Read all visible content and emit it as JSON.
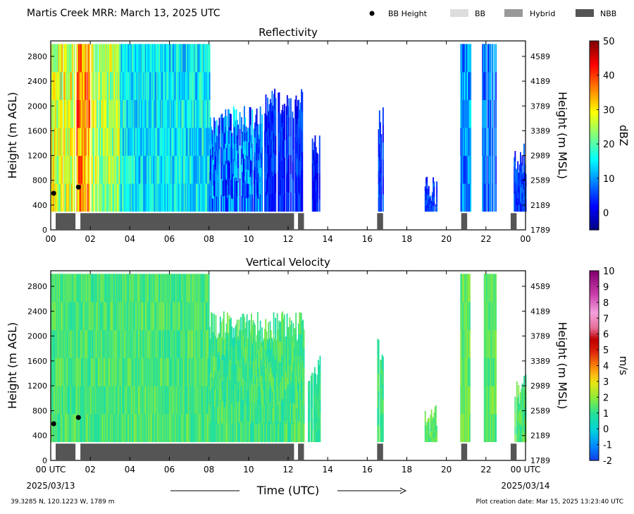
{
  "header": {
    "title": "Martis Creek MRR:  March 13, 2025 UTC",
    "legend": [
      {
        "label": "BB Height",
        "kind": "dot",
        "color": "#000000"
      },
      {
        "label": "BB",
        "kind": "box",
        "color": "#dddddd"
      },
      {
        "label": "Hybrid",
        "kind": "box",
        "color": "#999999"
      },
      {
        "label": "NBB",
        "kind": "box",
        "color": "#555555"
      }
    ]
  },
  "footer": {
    "location": "39.3285 N, 120.1223 W, 1789 m",
    "creation": "Plot creation date: Mar 15, 2025 13:23:40 UTC",
    "xlabel": "Time (UTC)",
    "date_start": "2025/03/13",
    "date_end": "2025/03/14"
  },
  "chart_data": [
    {
      "type": "heatmap",
      "title": "Reflectivity",
      "ylabel": "Height (m AGL)",
      "ylabel_right": "Height (m MSL)",
      "xlim": [
        0,
        24
      ],
      "ylim": [
        0,
        3050
      ],
      "x_ticks": [
        "00",
        "02",
        "04",
        "06",
        "08",
        "10",
        "12",
        "14",
        "16",
        "18",
        "20",
        "22",
        "00"
      ],
      "y_ticks": [
        0,
        400,
        800,
        1200,
        1600,
        2000,
        2400,
        2800
      ],
      "y_ticks_right": [
        "1789",
        "2189",
        "2589",
        "2989",
        "3389",
        "3789",
        "4189",
        "4589"
      ],
      "colorbar": {
        "label": "dBZ",
        "min": -5,
        "max": 50,
        "ticks": [
          0,
          10,
          20,
          30,
          40,
          50
        ],
        "colormap": "jet"
      },
      "bb_height": [
        {
          "x": 0.15,
          "y": 590
        },
        {
          "x": 1.4,
          "y": 690
        }
      ],
      "classification": [
        {
          "start": 0.25,
          "end": 1.25,
          "class": "NBB"
        },
        {
          "start": 1.5,
          "end": 12.3,
          "class": "NBB"
        },
        {
          "start": 12.5,
          "end": 12.8,
          "class": "NBB"
        },
        {
          "start": 16.5,
          "end": 16.8,
          "class": "NBB"
        },
        {
          "start": 20.75,
          "end": 21.05,
          "class": "NBB"
        },
        {
          "start": 23.25,
          "end": 23.55,
          "class": "NBB"
        }
      ],
      "echo_segments": [
        {
          "start": 0.0,
          "end": 1.2,
          "top": 3000,
          "center": 27,
          "spread": 8
        },
        {
          "start": 1.3,
          "end": 2.0,
          "top": 3000,
          "center": 35,
          "spread": 8
        },
        {
          "start": 2.0,
          "end": 3.5,
          "top": 3000,
          "center": 25,
          "spread": 7
        },
        {
          "start": 3.5,
          "end": 8.0,
          "top": 3000,
          "center": 15,
          "spread": 6
        },
        {
          "start": 8.0,
          "end": 10.8,
          "top": 2000,
          "center": 8,
          "spread": 8
        },
        {
          "start": 10.8,
          "end": 12.8,
          "top": 2300,
          "center": 4,
          "spread": 4
        },
        {
          "start": 13.2,
          "end": 13.6,
          "top": 1700,
          "center": 3,
          "spread": 3
        },
        {
          "start": 16.5,
          "end": 16.8,
          "top": 2000,
          "center": 5,
          "spread": 4
        },
        {
          "start": 18.9,
          "end": 19.5,
          "top": 900,
          "center": 5,
          "spread": 3
        },
        {
          "start": 20.7,
          "end": 21.2,
          "top": 3000,
          "center": 9,
          "spread": 6
        },
        {
          "start": 21.8,
          "end": 22.5,
          "top": 3000,
          "center": 8,
          "spread": 5
        },
        {
          "start": 23.4,
          "end": 24.0,
          "top": 1400,
          "center": 5,
          "spread": 4
        }
      ]
    },
    {
      "type": "heatmap",
      "title": "Vertical Velocity",
      "ylabel": "Height (m AGL)",
      "ylabel_right": "Height (m MSL)",
      "xlim": [
        0,
        24
      ],
      "ylim": [
        0,
        3050
      ],
      "x_ticks": [
        "00 UTC",
        "02",
        "04",
        "06",
        "08",
        "10",
        "12",
        "14",
        "16",
        "18",
        "20",
        "22",
        "00 UTC"
      ],
      "y_ticks": [
        0,
        400,
        800,
        1200,
        1600,
        2000,
        2400,
        2800
      ],
      "y_ticks_right": [
        "1789",
        "2189",
        "2589",
        "2989",
        "3389",
        "3789",
        "4189",
        "4589"
      ],
      "colorbar": {
        "label": "m/s",
        "min": -2,
        "max": 10,
        "ticks": [
          -2,
          -1,
          0,
          1,
          2,
          3,
          4,
          5,
          6,
          7,
          8,
          9,
          10
        ],
        "colormap": "velocity"
      },
      "bb_height": [
        {
          "x": 0.15,
          "y": 590
        },
        {
          "x": 1.4,
          "y": 690
        }
      ],
      "classification": [
        {
          "start": 0.25,
          "end": 1.25,
          "class": "NBB"
        },
        {
          "start": 1.5,
          "end": 12.3,
          "class": "NBB"
        },
        {
          "start": 12.5,
          "end": 12.8,
          "class": "NBB"
        },
        {
          "start": 16.5,
          "end": 16.8,
          "class": "NBB"
        },
        {
          "start": 20.75,
          "end": 21.05,
          "class": "NBB"
        },
        {
          "start": 23.25,
          "end": 23.55,
          "class": "NBB"
        }
      ],
      "echo_segments": [
        {
          "start": 0.0,
          "end": 8.0,
          "top": 3000,
          "center": 1.3,
          "spread": 0.6
        },
        {
          "start": 8.0,
          "end": 12.8,
          "top": 2400,
          "center": 1.2,
          "spread": 0.7
        },
        {
          "start": 13.0,
          "end": 13.6,
          "top": 1700,
          "center": 1.0,
          "spread": 0.4
        },
        {
          "start": 16.5,
          "end": 16.8,
          "top": 2000,
          "center": 1.2,
          "spread": 0.5
        },
        {
          "start": 18.9,
          "end": 19.5,
          "top": 900,
          "center": 1.5,
          "spread": 0.4
        },
        {
          "start": 20.7,
          "end": 21.2,
          "top": 3000,
          "center": 1.6,
          "spread": 0.6
        },
        {
          "start": 21.8,
          "end": 22.5,
          "top": 3000,
          "center": 1.5,
          "spread": 0.5
        },
        {
          "start": 23.4,
          "end": 24.0,
          "top": 1400,
          "center": 1.4,
          "spread": 0.5
        }
      ]
    }
  ]
}
